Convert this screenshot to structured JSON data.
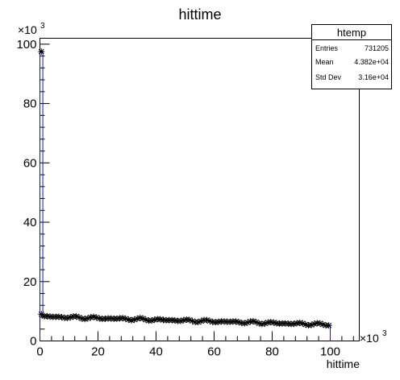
{
  "chart_data": {
    "type": "scatter",
    "title": "hittime",
    "xlabel": "hittime",
    "ylabel": "",
    "x_multiplier": "×10",
    "x_multiplier_exp": "3",
    "y_multiplier": "×10",
    "y_multiplier_exp": "3",
    "xlim": [
      0,
      110000
    ],
    "ylim": [
      0,
      102000
    ],
    "x_ticks": [
      {
        "value": 0,
        "label": "0"
      },
      {
        "value": 20000,
        "label": "20"
      },
      {
        "value": 40000,
        "label": "40"
      },
      {
        "value": 60000,
        "label": "60"
      },
      {
        "value": 80000,
        "label": "80"
      },
      {
        "value": 100000,
        "label": "100"
      }
    ],
    "y_ticks": [
      {
        "value": 0,
        "label": "0"
      },
      {
        "value": 20000,
        "label": "20"
      },
      {
        "value": 40000,
        "label": "40"
      },
      {
        "value": 60000,
        "label": "60"
      },
      {
        "value": 80000,
        "label": "80"
      },
      {
        "value": 100000,
        "label": "100"
      }
    ],
    "marker": "star",
    "marker_color": "#000000",
    "hist_line_color": "#1a1aa6",
    "peak": {
      "x": 500,
      "y": 97500
    },
    "series_start": {
      "x": 500,
      "y": 9000
    },
    "points_start": {
      "x": 1500,
      "y": 8200
    },
    "points_end": {
      "x": 99500,
      "y": 5500
    },
    "bin_width": 1000,
    "grid": false,
    "legend": "none",
    "stats": {
      "name": "htemp",
      "rows": [
        {
          "label": "Entries",
          "value": "731205"
        },
        {
          "label": "Mean",
          "value": "4.382e+04"
        },
        {
          "label": "Std Dev",
          "value": "3.16e+04"
        }
      ]
    }
  }
}
